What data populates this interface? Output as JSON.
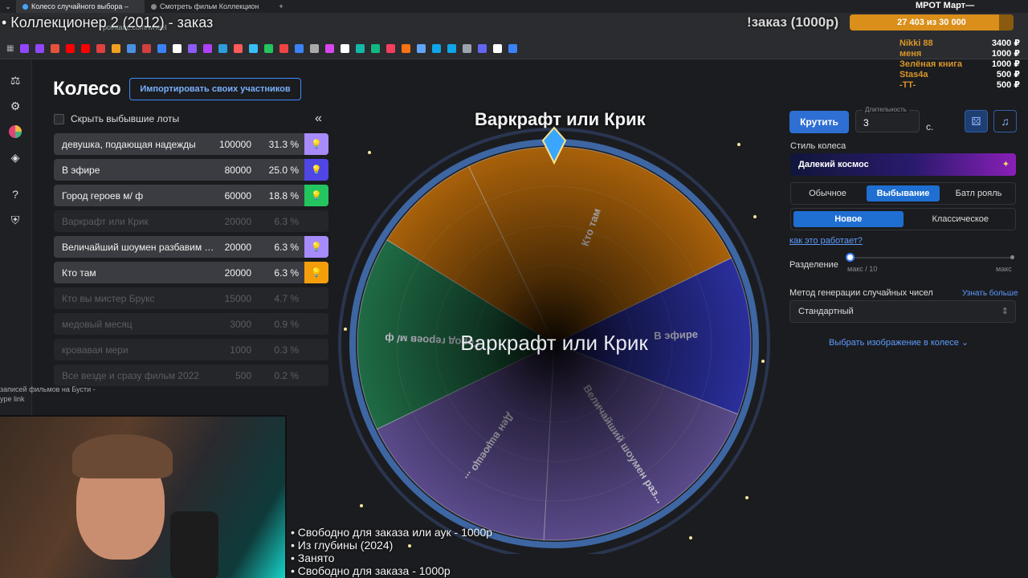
{
  "browser": {
    "tabs": [
      {
        "label": "Колесо случайного выбора –"
      },
      {
        "label": "Смотреть фильм Коллекцион"
      }
    ],
    "url": "pointauc.com/wheel"
  },
  "stream": {
    "title": "• Коллекционер 2 (2012) - заказ",
    "order_label": "!заказ (1000р)",
    "goal_text": "27 403  из 30 000",
    "goal_fraction": 0.913,
    "mrot_label": "МРОТ Март—",
    "donors": [
      {
        "name": "Nikki 88",
        "amount": "3400 ₽"
      },
      {
        "name": "меня",
        "amount": "1000 ₽"
      },
      {
        "name": "Зелёная книга",
        "amount": "1000 ₽"
      },
      {
        "name": "Stas4a",
        "amount": "500 ₽"
      },
      {
        "name": "-TT-",
        "amount": "500 ₽"
      }
    ],
    "left_hint_1": "записей фильмов на Бусти -",
    "left_hint_2": "ype link",
    "overlay_lines": [
      "• Свободно для заказа или аук - 1000р",
      "• Из глубины (2024)",
      "• Занято",
      "• Свободно для заказа - 1000р"
    ]
  },
  "sidebar": {
    "icons": [
      "auction-icon",
      "settings-icon",
      "wheel-icon",
      "layers-icon",
      "help-icon",
      "shield-icon"
    ]
  },
  "page": {
    "title": "Колесо",
    "import_button": "Импортировать своих участников",
    "hide_checkbox_label": "Скрыть выбывшие лоты",
    "collapse_icon": "«"
  },
  "lots": [
    {
      "name": "девушка, подающая надежды",
      "amount": "100000",
      "percent": "31.3 %",
      "state": "active",
      "color": "#a78bfa"
    },
    {
      "name": "В эфире",
      "amount": "80000",
      "percent": "25.0 %",
      "state": "active",
      "color": "#4f46e5"
    },
    {
      "name": "Город героев м/ ф",
      "amount": "60000",
      "percent": "18.8 %",
      "state": "active",
      "color": "#22c55e"
    },
    {
      "name": "Варкрафт или Крик",
      "amount": "20000",
      "percent": "6.3 %",
      "state": "out",
      "color": ""
    },
    {
      "name": "Величайший шоумен разбавим тр...",
      "amount": "20000",
      "percent": "6.3 %",
      "state": "active",
      "color": "#a78bfa"
    },
    {
      "name": "Кто там",
      "amount": "20000",
      "percent": "6.3 %",
      "state": "active",
      "color": "#f59e0b"
    },
    {
      "name": "Кто вы мистер Брукс",
      "amount": "15000",
      "percent": "4.7 %",
      "state": "out",
      "color": ""
    },
    {
      "name": "медовый месяц",
      "amount": "3000",
      "percent": "0.9 %",
      "state": "out",
      "color": ""
    },
    {
      "name": "кровавая мери",
      "amount": "1000",
      "percent": "0.3 %",
      "state": "out",
      "color": ""
    },
    {
      "name": "Все везде и сразу фильм 2022",
      "amount": "500",
      "percent": "0.2 %",
      "state": "out",
      "color": ""
    }
  ],
  "wheel": {
    "title": "Варкрафт или Крик",
    "center_text": "Варкрафт или Крик",
    "segments": [
      {
        "label": "Кто там",
        "share": 0.25,
        "color": "#a8610a"
      },
      {
        "label": "В эфире",
        "share": 0.13,
        "color": "#2a2f9c"
      },
      {
        "label": "Величайший шоумен раз...",
        "share": 0.2,
        "color": "#5a4a8a"
      },
      {
        "label": "Ден вщюещо ... ",
        "share": 0.17,
        "color": "#5a4a8a"
      },
      {
        "label": "Город героев м/ ф",
        "share": 0.16,
        "color": "#1f6b45"
      },
      {
        "label": "",
        "share": 0.09,
        "color": "#a8610a"
      }
    ]
  },
  "controls": {
    "spin_button": "Крутить",
    "duration_label": "Длительность",
    "duration_value": "3",
    "seconds_label": "с.",
    "dice_icon": "dice-icon",
    "music_icon": "music-icon",
    "wheel_style_label": "Стиль колеса",
    "wheel_style_value": "Далекий космос",
    "mode_options": [
      "Обычное",
      "Выбывание",
      "Батл рояль"
    ],
    "mode_selected": 1,
    "variant_options": [
      "Новое",
      "Классическое"
    ],
    "variant_selected": 0,
    "how_link": "как это работает?",
    "split_label": "Разделение",
    "split_min": "макс / 10",
    "split_max": "макс",
    "split_value_fraction": 0,
    "rng_label": "Метод генерации случайных чисел",
    "rng_learn_more": "Узнать больше",
    "rng_value": "Стандартный",
    "image_link": "Выбрать изображение в колесе"
  }
}
